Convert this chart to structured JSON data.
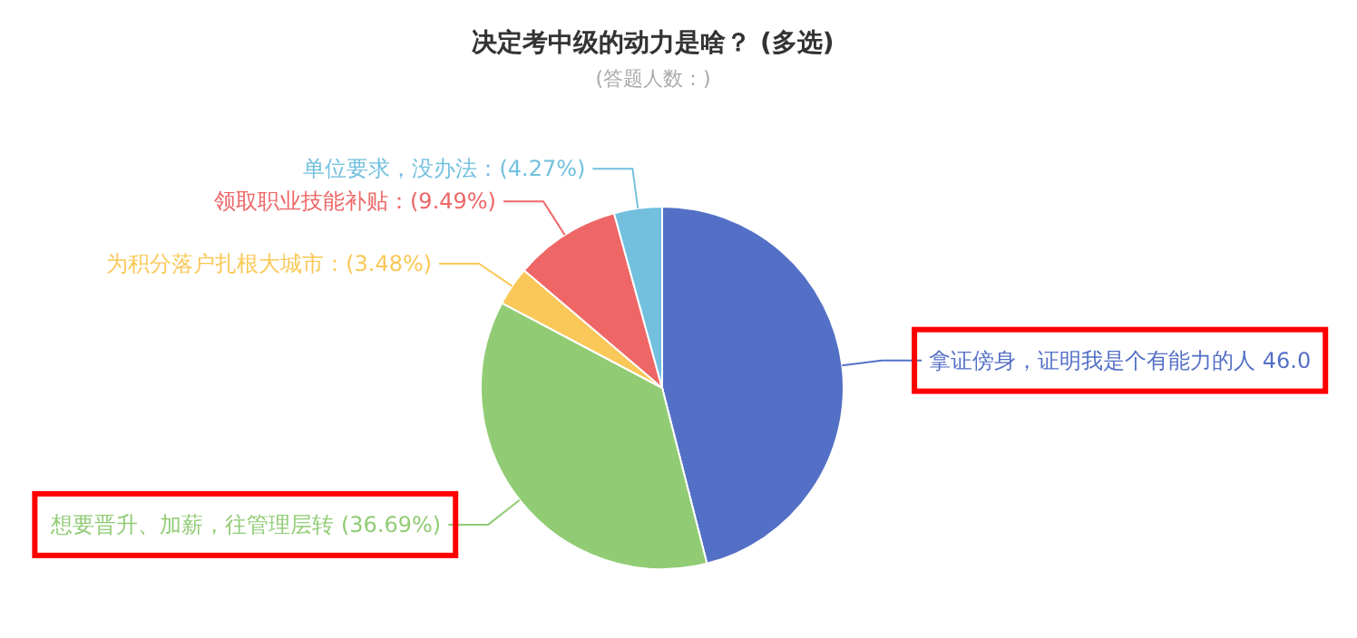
{
  "chart_data": {
    "type": "pie",
    "title": "决定考中级的动力是啥？ (多选)",
    "subtitle": "(答题人数：)",
    "categories": [
      "拿证傍身，证明我是个有能力的人",
      "想要晋升、加薪，往管理层转",
      "为积分落户扎根大城市",
      "领取职业技能补贴",
      "单位要求，没办法"
    ],
    "values": [
      46.0,
      36.69,
      3.48,
      9.49,
      4.27
    ],
    "value_labels": [
      "46.0",
      "(36.69%)",
      "(3.48%)",
      "(9.49%)",
      "(4.27%)"
    ],
    "colors": [
      "#5470c6",
      "#91cc75",
      "#fac858",
      "#ee6666",
      "#73c0de"
    ]
  }
}
